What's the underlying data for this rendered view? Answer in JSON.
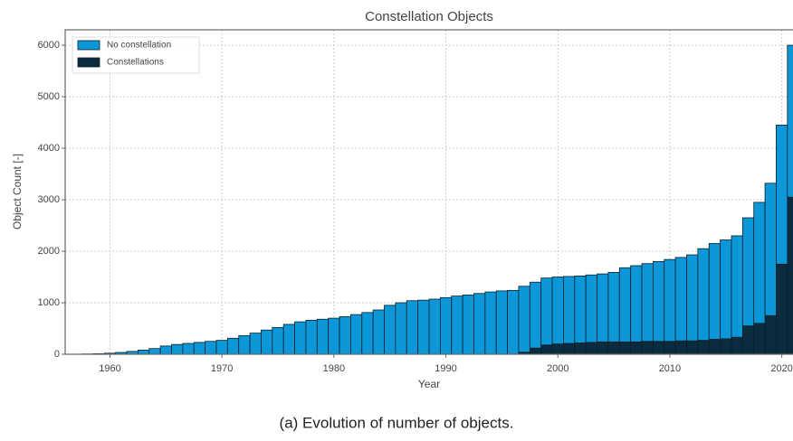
{
  "chart_data": {
    "type": "bar",
    "stacked": true,
    "title": "Constellation Objects",
    "xlabel": "Year",
    "ylabel": "Object Count [-]",
    "caption": "(a) Evolution of number of objects.",
    "x": [
      1957,
      1958,
      1959,
      1960,
      1961,
      1962,
      1963,
      1964,
      1965,
      1966,
      1967,
      1968,
      1969,
      1970,
      1971,
      1972,
      1973,
      1974,
      1975,
      1976,
      1977,
      1978,
      1979,
      1980,
      1981,
      1982,
      1983,
      1984,
      1985,
      1986,
      1987,
      1988,
      1989,
      1990,
      1991,
      1992,
      1993,
      1994,
      1995,
      1996,
      1997,
      1998,
      1999,
      2000,
      2001,
      2002,
      2003,
      2004,
      2005,
      2006,
      2007,
      2008,
      2009,
      2010,
      2011,
      2012,
      2013,
      2014,
      2015,
      2016,
      2017,
      2018,
      2019,
      2020,
      2021
    ],
    "series": [
      {
        "name": "No constellation",
        "color": "#0c98d8",
        "values": [
          2,
          5,
          10,
          20,
          35,
          55,
          80,
          110,
          160,
          190,
          210,
          230,
          250,
          270,
          310,
          360,
          410,
          470,
          520,
          580,
          630,
          660,
          680,
          700,
          730,
          770,
          810,
          860,
          950,
          1000,
          1040,
          1050,
          1070,
          1100,
          1130,
          1150,
          1180,
          1210,
          1230,
          1240,
          1280,
          1280,
          1300,
          1300,
          1300,
          1300,
          1310,
          1320,
          1350,
          1440,
          1480,
          1510,
          1550,
          1590,
          1620,
          1670,
          1780,
          1860,
          1920,
          1970,
          2100,
          2350,
          2570,
          2700,
          2950
        ]
      },
      {
        "name": "Constellations",
        "color": "#0b2b3e",
        "values": [
          0,
          0,
          0,
          0,
          0,
          0,
          0,
          0,
          0,
          0,
          0,
          0,
          0,
          0,
          0,
          0,
          0,
          0,
          0,
          0,
          0,
          0,
          0,
          0,
          0,
          0,
          0,
          0,
          0,
          0,
          0,
          0,
          0,
          0,
          0,
          0,
          0,
          0,
          0,
          0,
          40,
          120,
          180,
          200,
          210,
          220,
          230,
          240,
          240,
          240,
          240,
          250,
          250,
          250,
          260,
          260,
          270,
          290,
          300,
          330,
          550,
          600,
          750,
          1750,
          3050
        ]
      }
    ],
    "xlim": [
      1956,
      2021
    ],
    "ylim": [
      0,
      6300
    ],
    "xticks": [
      1960,
      1970,
      1980,
      1990,
      2000,
      2010,
      2020
    ],
    "yticks": [
      0,
      1000,
      2000,
      3000,
      4000,
      5000,
      6000
    ],
    "grid": true,
    "legend": "upper left"
  }
}
